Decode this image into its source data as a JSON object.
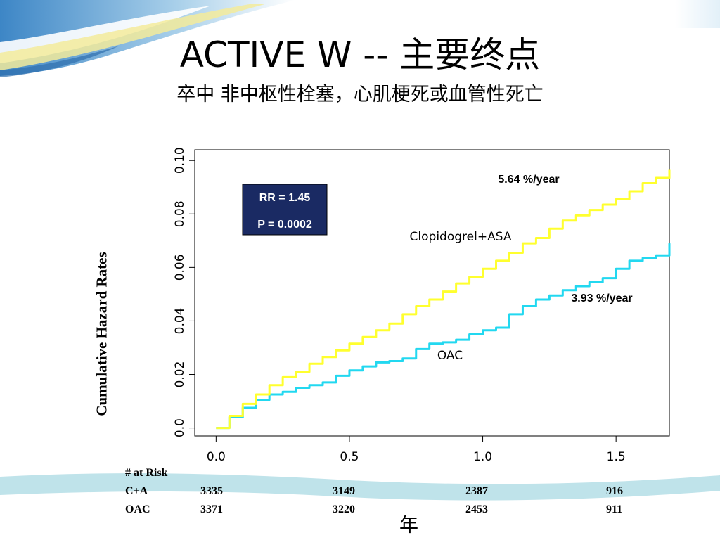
{
  "slide": {
    "title": "ACTIVE W --  主要终点",
    "subtitle": "卒中 非中枢性栓塞，心肌梗死或血管性死亡"
  },
  "colors": {
    "clopidogrel_asa": "#ffff2e",
    "oac": "#22d8f0",
    "stat_box": "#1a2a63",
    "wave": "#bfe3ea"
  },
  "chart_data": {
    "type": "line",
    "ylabel": "Cumulative Hazard Rates",
    "xlabel": "年",
    "xlim": [
      -0.08,
      1.7
    ],
    "ylim": [
      -0.003,
      0.104
    ],
    "x_ticks": [
      0.0,
      0.5,
      1.0,
      1.5
    ],
    "x_tick_labels": [
      "0.0",
      "0.5",
      "1.0",
      "1.5"
    ],
    "y_ticks": [
      0.0,
      0.02,
      0.04,
      0.06,
      0.08,
      0.1
    ],
    "y_tick_labels": [
      "0.0",
      "0.02",
      "0.04",
      "0.06",
      "0.08",
      "0.10"
    ],
    "grid": false,
    "series": [
      {
        "name": "Clopidogrel+ASA",
        "rate_label": "5.64 %/year",
        "x": [
          0.0,
          0.05,
          0.1,
          0.15,
          0.2,
          0.25,
          0.3,
          0.35,
          0.4,
          0.45,
          0.5,
          0.55,
          0.6,
          0.65,
          0.7,
          0.75,
          0.8,
          0.85,
          0.9,
          0.95,
          1.0,
          1.05,
          1.1,
          1.15,
          1.2,
          1.25,
          1.3,
          1.35,
          1.4,
          1.45,
          1.5,
          1.55,
          1.6,
          1.65,
          1.7
        ],
        "y": [
          0.0,
          0.0045,
          0.009,
          0.0125,
          0.016,
          0.019,
          0.021,
          0.024,
          0.0265,
          0.029,
          0.0315,
          0.034,
          0.0365,
          0.039,
          0.0425,
          0.0455,
          0.048,
          0.051,
          0.054,
          0.0565,
          0.0595,
          0.0625,
          0.0655,
          0.069,
          0.071,
          0.0745,
          0.0775,
          0.0795,
          0.0815,
          0.0835,
          0.0855,
          0.0885,
          0.0915,
          0.0935,
          0.0965
        ]
      },
      {
        "name": "OAC",
        "rate_label": "3.93 %/year",
        "x": [
          0.0,
          0.05,
          0.1,
          0.15,
          0.2,
          0.25,
          0.3,
          0.35,
          0.4,
          0.45,
          0.5,
          0.55,
          0.6,
          0.65,
          0.7,
          0.75,
          0.8,
          0.85,
          0.9,
          0.95,
          1.0,
          1.05,
          1.1,
          1.15,
          1.2,
          1.25,
          1.3,
          1.35,
          1.4,
          1.45,
          1.5,
          1.55,
          1.6,
          1.65,
          1.7
        ],
        "y": [
          0.0,
          0.004,
          0.0075,
          0.0105,
          0.0125,
          0.0135,
          0.015,
          0.016,
          0.017,
          0.0195,
          0.0215,
          0.023,
          0.0245,
          0.025,
          0.026,
          0.0295,
          0.0315,
          0.032,
          0.033,
          0.035,
          0.0365,
          0.0375,
          0.0425,
          0.0455,
          0.048,
          0.0495,
          0.0515,
          0.053,
          0.0545,
          0.056,
          0.0595,
          0.0625,
          0.0635,
          0.0645,
          0.069
        ]
      }
    ],
    "annotations": {
      "rr": "RR = 1.45",
      "p": "P = 0.0002"
    }
  },
  "risk_table": {
    "header": "# at Risk",
    "rows": [
      {
        "label": "C+A",
        "values": [
          "3335",
          "3149",
          "2387",
          "916"
        ]
      },
      {
        "label": "OAC",
        "values": [
          "3371",
          "3220",
          "2453",
          "911"
        ]
      }
    ]
  }
}
